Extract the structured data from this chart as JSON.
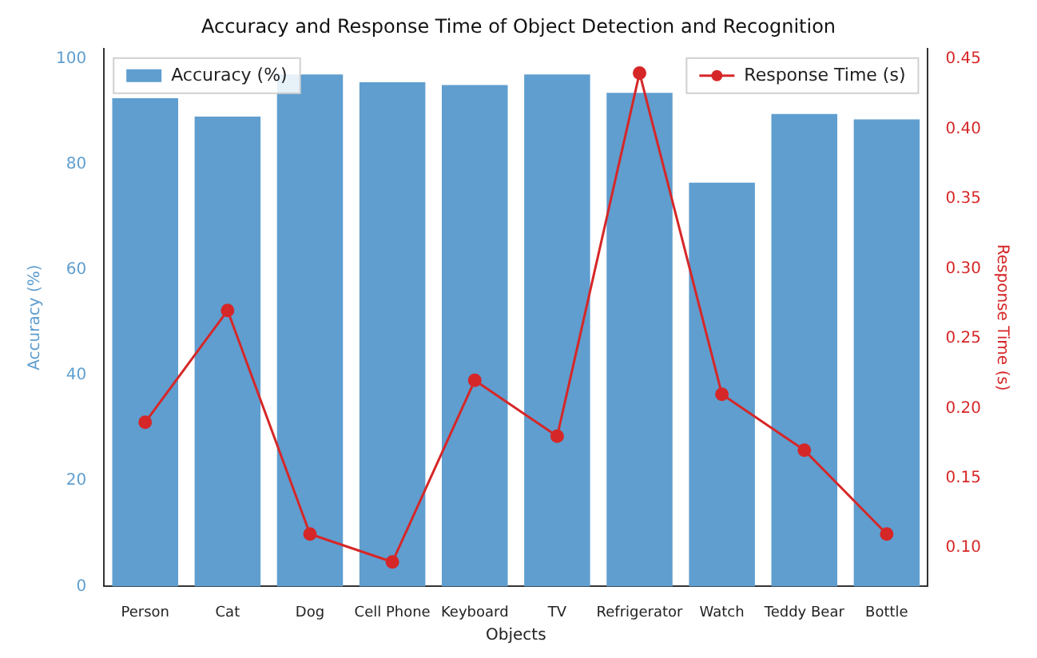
{
  "chart_data": {
    "type": "bar",
    "title": "Accuracy and Response Time of Object Detection and Recognition",
    "xlabel": "Objects",
    "ylabel": "Accuracy (%)",
    "y2label": "Response Time (s)",
    "categories": [
      "Person",
      "Cat",
      "Dog",
      "Cell Phone",
      "Keyboard",
      "TV",
      "Refrigerator",
      "Watch",
      "Teddy Bear",
      "Bottle"
    ],
    "series": [
      {
        "name": "Accuracy (%)",
        "color": "#5f9ecf",
        "values": [
          92.5,
          89,
          97,
          95.5,
          95,
          97,
          93.5,
          76.5,
          89.5,
          88.5
        ]
      },
      {
        "name": "Response Time (s)",
        "type": "line",
        "axis": "y2",
        "color": "#d62728",
        "values": [
          0.19,
          0.27,
          0.11,
          0.09,
          0.22,
          0.18,
          0.44,
          0.21,
          0.17,
          0.11
        ]
      }
    ],
    "ylim": [
      0,
      101.9
    ],
    "yticks": [
      0,
      20,
      40,
      60,
      80,
      100
    ],
    "y2lim": [
      0.0725,
      0.4575
    ],
    "y2ticks": [
      {
        "value": 0.1,
        "label": "0.10"
      },
      0.15,
      {
        "value": 0.2,
        "label": "0.20"
      },
      0.25,
      {
        "value": 0.3,
        "label": "0.30"
      },
      0.35,
      {
        "value": 0.4,
        "label": "0.40"
      },
      0.45
    ],
    "grid": false,
    "legend": "top",
    "marker": "circle"
  }
}
